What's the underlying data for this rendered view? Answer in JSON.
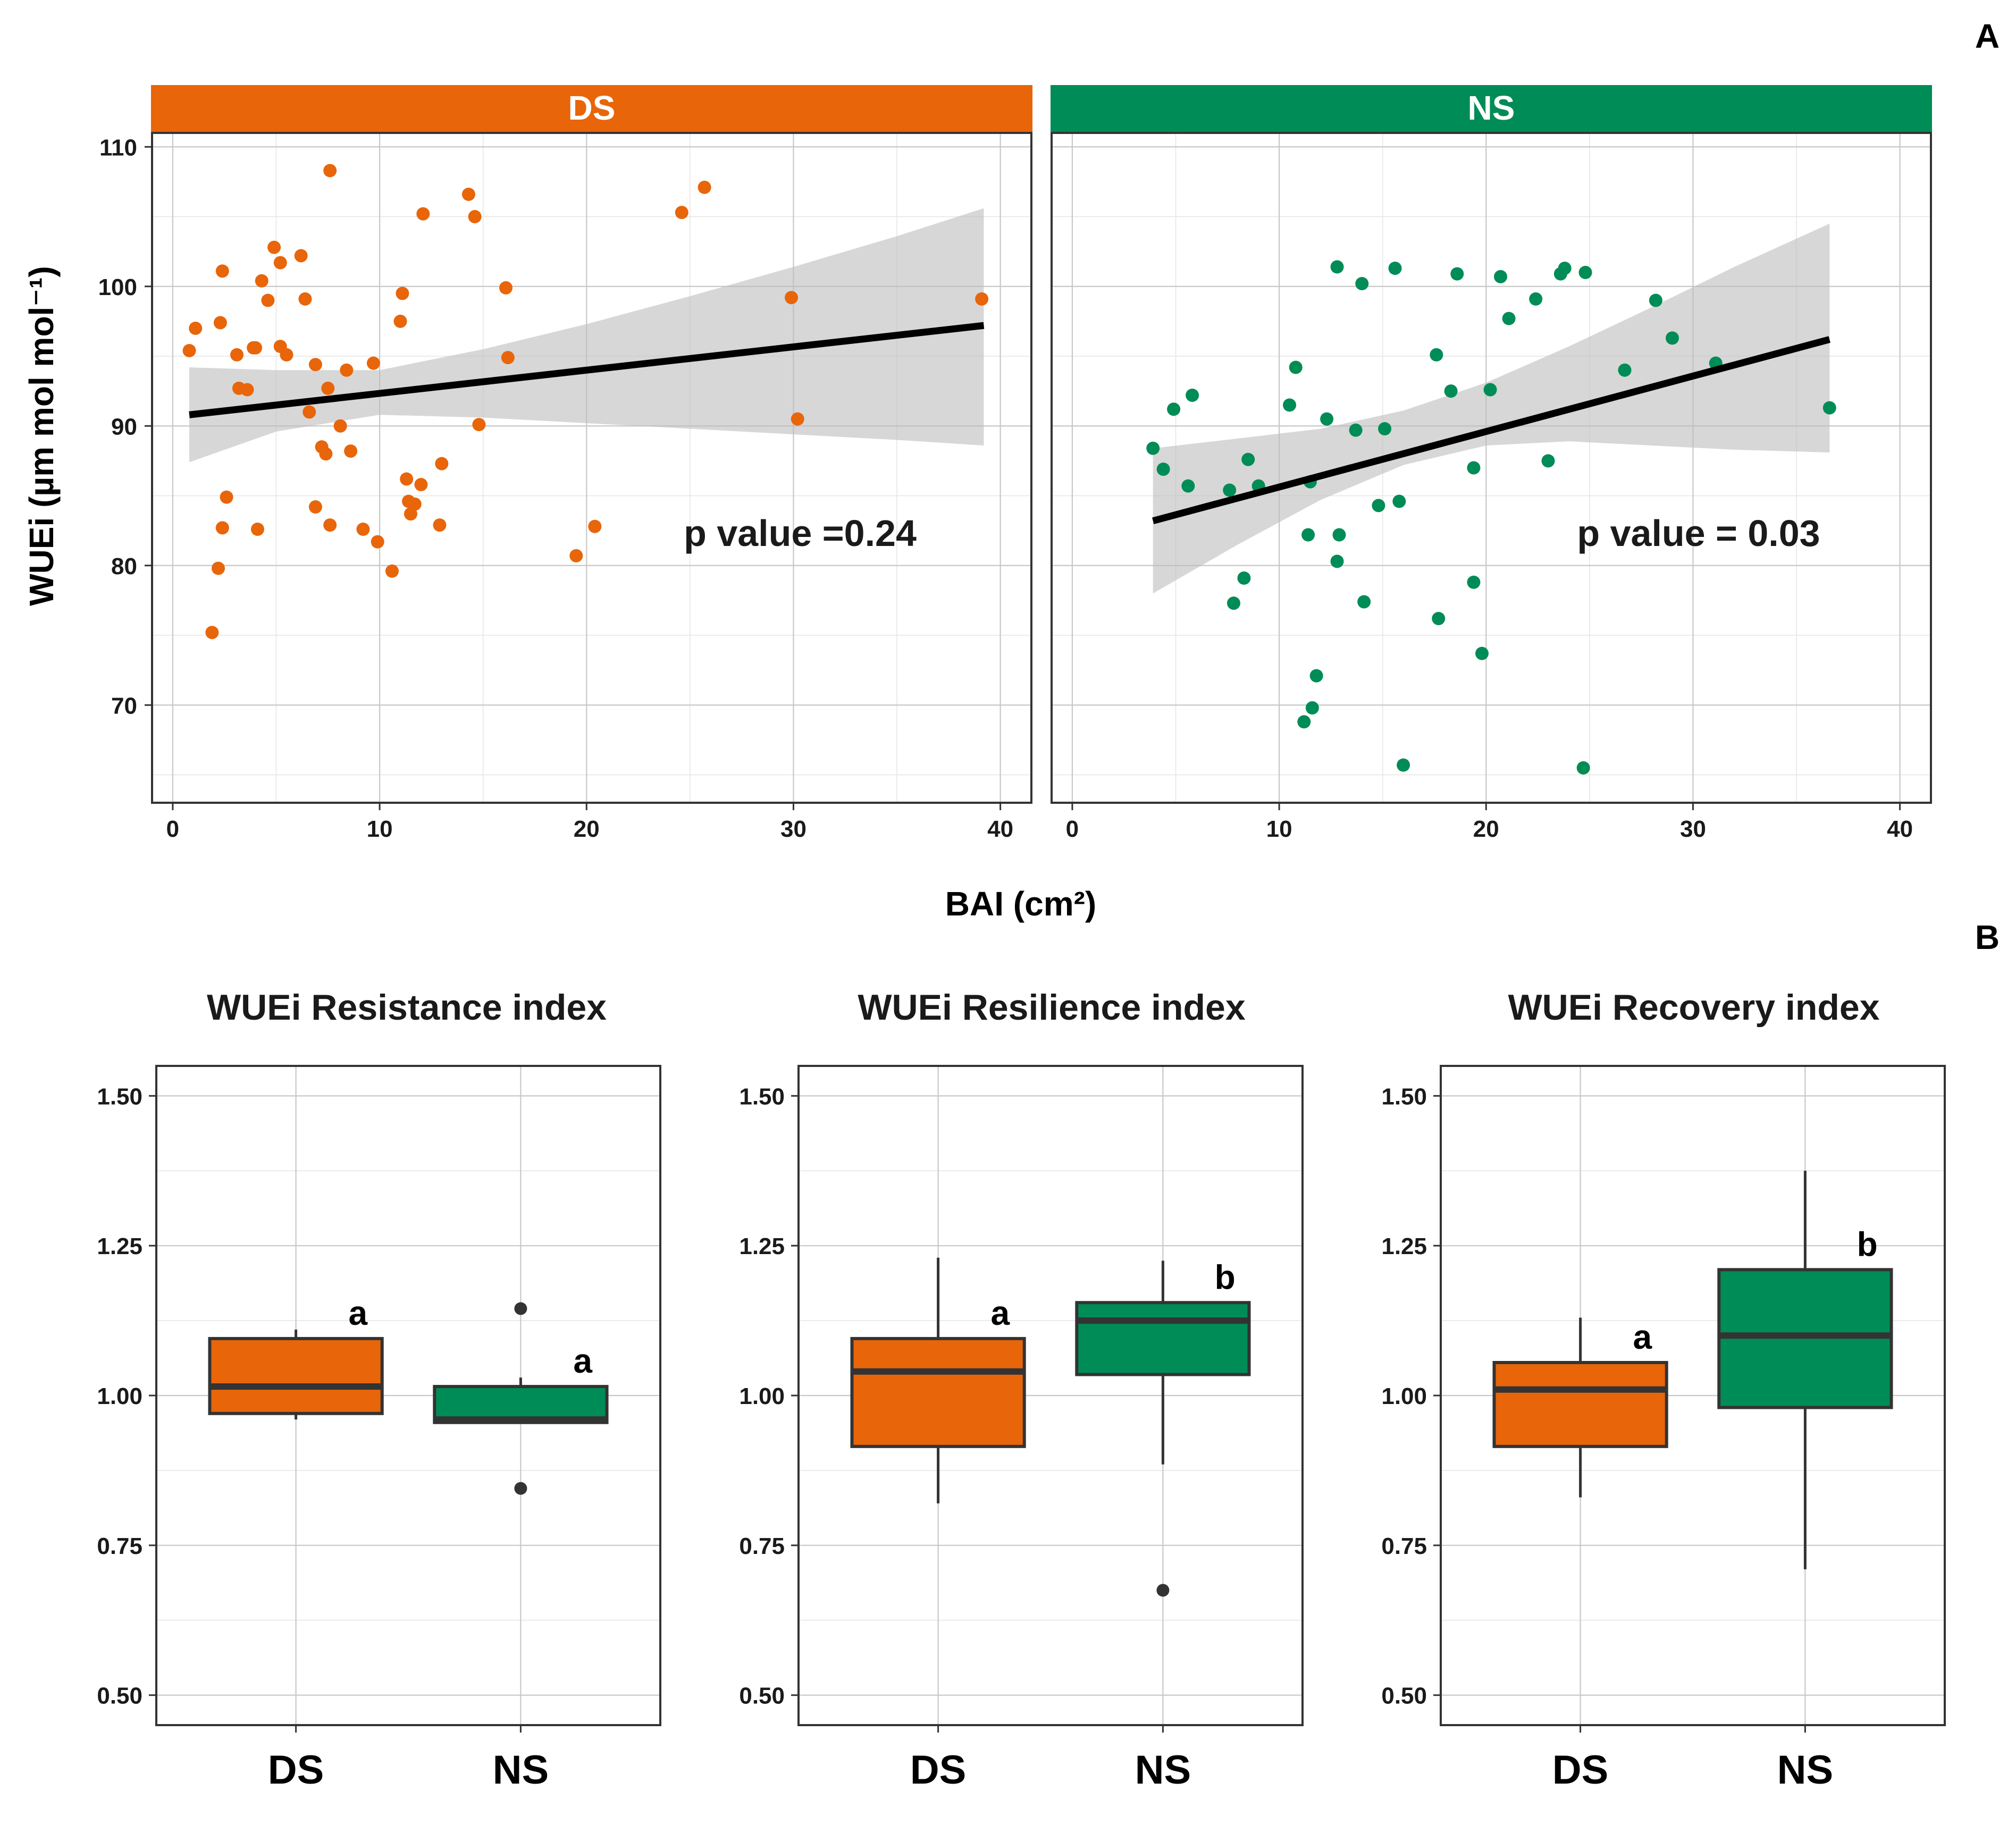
{
  "figure": {
    "panel_a_letter": "A",
    "panel_b_letter": "B"
  },
  "colors": {
    "DS": "#e8650a",
    "NS": "#008c56"
  },
  "chart_data": [
    {
      "type": "scatter",
      "id": "scatter-ds",
      "title": "DS",
      "ylabel": "WUEi (µm mol mol⁻¹)",
      "xlabel": "BAI (cm²)",
      "xlim": [
        -1,
        41.5
      ],
      "ylim": [
        63,
        111
      ],
      "xticks": [
        0,
        10,
        20,
        30,
        40
      ],
      "yticks": [
        70,
        80,
        90,
        100,
        110
      ],
      "annotation": "p value =0.24",
      "fit": {
        "x": [
          0.8,
          39.2
        ],
        "y": [
          90.8,
          97.2
        ]
      },
      "ci": {
        "x": [
          0.8,
          5,
          10,
          15,
          20,
          25,
          30,
          35,
          39.2
        ],
        "lower": [
          87.4,
          89.6,
          90.8,
          90.6,
          90.2,
          89.8,
          89.4,
          89.0,
          88.6
        ],
        "upper": [
          94.2,
          94.0,
          94.0,
          95.5,
          97.3,
          99.3,
          101.4,
          103.6,
          105.6
        ]
      },
      "points": {
        "x": [
          0.8,
          1.1,
          2.3,
          2.4,
          3.1,
          4.0,
          4.3,
          4.6,
          5.2,
          6.2,
          6.4,
          7.6,
          1.9,
          2.2,
          2.4,
          2.6,
          3.2,
          3.6,
          3.9,
          4.9,
          5.2,
          5.5,
          6.6,
          6.9,
          7.2,
          7.4,
          7.5,
          7.6,
          8.1,
          8.6,
          9.2,
          9.7,
          9.9,
          10.6,
          11.0,
          11.1,
          11.3,
          11.4,
          11.5,
          11.7,
          12.0,
          12.1,
          12.9,
          13.0,
          14.3,
          14.6,
          14.8,
          16.1,
          16.2,
          19.5,
          20.4,
          24.6,
          25.7,
          29.9,
          30.2,
          39.1,
          8.4,
          6.9,
          4.1
        ],
        "y": [
          95.4,
          97.0,
          97.4,
          101.1,
          95.1,
          95.6,
          100.4,
          99.0,
          95.7,
          102.2,
          99.1,
          108.3,
          75.2,
          79.8,
          82.7,
          84.9,
          92.7,
          92.6,
          95.6,
          102.8,
          101.7,
          95.1,
          91.0,
          94.4,
          88.5,
          88.0,
          92.7,
          82.9,
          90.0,
          88.2,
          82.6,
          94.5,
          81.7,
          79.6,
          97.5,
          99.5,
          86.2,
          84.6,
          83.7,
          84.4,
          85.8,
          105.2,
          82.9,
          87.3,
          106.6,
          105.0,
          90.1,
          99.9,
          94.9,
          80.7,
          82.8,
          105.3,
          107.1,
          99.2,
          90.5,
          99.1,
          94.0,
          84.2,
          82.6
        ]
      }
    },
    {
      "type": "scatter",
      "id": "scatter-ns",
      "title": "NS",
      "xlabel": "BAI (cm²)",
      "xlim": [
        -1,
        41.5
      ],
      "ylim": [
        63,
        111
      ],
      "xticks": [
        0,
        10,
        20,
        30,
        40
      ],
      "annotation": "p value = 0.03",
      "fit": {
        "x": [
          3.9,
          36.6
        ],
        "y": [
          83.2,
          96.2
        ]
      },
      "ci": {
        "x": [
          3.9,
          8,
          12,
          16,
          20,
          24,
          28,
          32,
          36.6
        ],
        "lower": [
          78.0,
          81.5,
          84.7,
          87.2,
          88.6,
          88.9,
          88.6,
          88.3,
          88.1
        ],
        "upper": [
          88.4,
          89.1,
          89.8,
          91.1,
          93.1,
          95.7,
          98.5,
          101.4,
          104.5
        ]
      },
      "points": {
        "x": [
          3.9,
          4.4,
          4.9,
          5.8,
          7.6,
          8.5,
          9.0,
          10.5,
          10.8,
          11.2,
          11.4,
          11.6,
          11.8,
          12.3,
          12.8,
          12.8,
          12.9,
          13.7,
          14.0,
          14.1,
          14.8,
          15.1,
          15.6,
          15.8,
          16.0,
          17.6,
          17.7,
          18.3,
          18.6,
          19.4,
          19.4,
          19.8,
          20.2,
          20.7,
          21.1,
          22.4,
          23.0,
          23.6,
          23.8,
          24.7,
          24.8,
          26.7,
          28.2,
          29.0,
          31.1,
          36.6,
          5.6,
          7.8,
          8.3,
          11.5
        ],
        "y": [
          88.4,
          86.9,
          91.2,
          92.2,
          85.4,
          87.6,
          85.7,
          91.5,
          94.2,
          68.8,
          82.2,
          69.8,
          72.1,
          90.5,
          101.4,
          80.3,
          82.2,
          89.7,
          100.2,
          77.4,
          84.3,
          89.8,
          101.3,
          84.6,
          65.7,
          95.1,
          76.2,
          92.5,
          100.9,
          78.8,
          87.0,
          73.7,
          92.6,
          100.7,
          97.7,
          99.1,
          87.5,
          100.9,
          101.3,
          65.5,
          101.0,
          94.0,
          99.0,
          96.3,
          94.5,
          91.3,
          85.7,
          77.3,
          79.1,
          86.0
        ]
      }
    },
    {
      "type": "box",
      "id": "box-resistance",
      "title": "WUEi Resistance index",
      "categories": [
        "DS",
        "NS"
      ],
      "ylim": [
        0.45,
        1.55
      ],
      "yticks": [
        "0.50",
        "0.75",
        "1.00",
        "1.25",
        "1.50"
      ],
      "boxes": [
        {
          "q1": 0.97,
          "median": 1.015,
          "q3": 1.095,
          "whisker_low": 0.96,
          "whisker_high": 1.11,
          "outliers": [],
          "letter": "a"
        },
        {
          "q1": 0.955,
          "median": 0.96,
          "q3": 1.015,
          "whisker_low": 0.955,
          "whisker_high": 1.03,
          "outliers": [
            1.145,
            0.845
          ],
          "letter": "a"
        }
      ]
    },
    {
      "type": "box",
      "id": "box-resilience",
      "title": "WUEi Resilience index",
      "categories": [
        "DS",
        "NS"
      ],
      "ylim": [
        0.45,
        1.55
      ],
      "yticks": [
        "0.50",
        "0.75",
        "1.00",
        "1.25",
        "1.50"
      ],
      "boxes": [
        {
          "q1": 0.915,
          "median": 1.04,
          "q3": 1.095,
          "whisker_low": 0.82,
          "whisker_high": 1.23,
          "outliers": [],
          "letter": "a"
        },
        {
          "q1": 1.035,
          "median": 1.125,
          "q3": 1.155,
          "whisker_low": 0.885,
          "whisker_high": 1.225,
          "outliers": [
            0.675
          ],
          "letter": "b"
        }
      ]
    },
    {
      "type": "box",
      "id": "box-recovery",
      "title": "WUEi Recovery index",
      "categories": [
        "DS",
        "NS"
      ],
      "ylim": [
        0.45,
        1.55
      ],
      "yticks": [
        "0.50",
        "0.75",
        "1.00",
        "1.25",
        "1.50"
      ],
      "boxes": [
        {
          "q1": 0.915,
          "median": 1.01,
          "q3": 1.055,
          "whisker_low": 0.83,
          "whisker_high": 1.13,
          "outliers": [],
          "letter": "a"
        },
        {
          "q1": 0.98,
          "median": 1.1,
          "q3": 1.21,
          "whisker_low": 0.71,
          "whisker_high": 1.375,
          "outliers": [],
          "letter": "b"
        }
      ]
    }
  ]
}
